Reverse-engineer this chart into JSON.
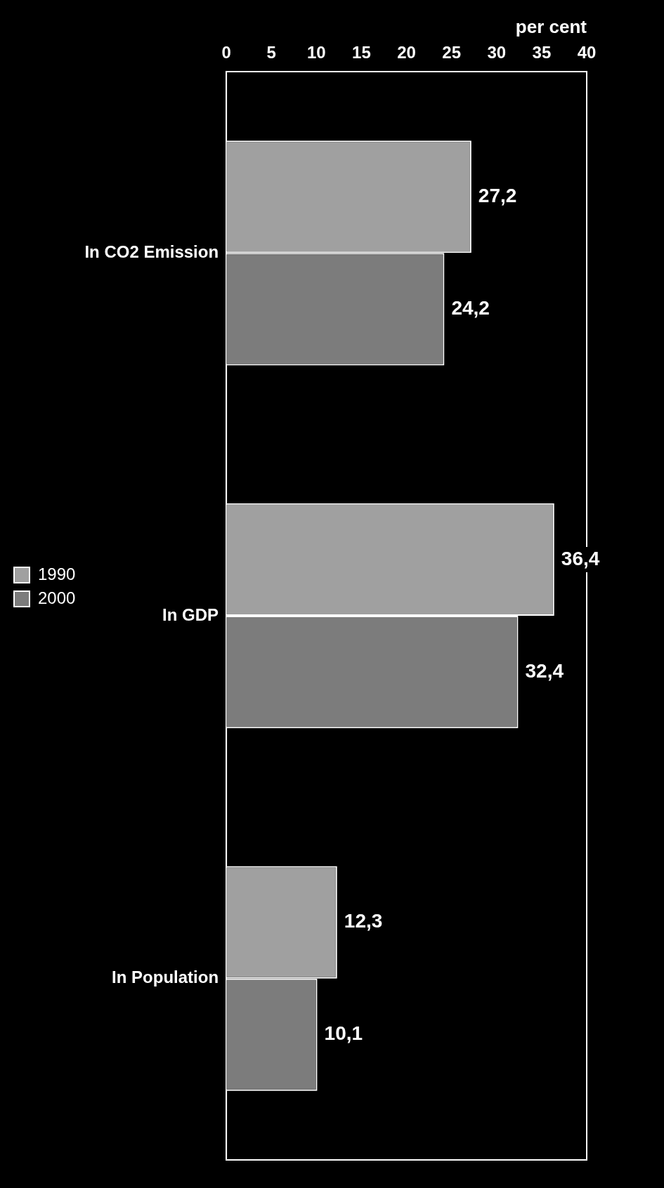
{
  "chart_data": {
    "type": "bar",
    "orientation": "horizontal",
    "xlabel": "per cent",
    "categories": [
      "In CO2 Emission",
      "In GDP",
      "In Population"
    ],
    "series": [
      {
        "name": "1990",
        "color": "#a0a0a0",
        "values": [
          27.2,
          36.4,
          12.3
        ],
        "value_labels": [
          "27,2",
          "36,4",
          "12,3"
        ]
      },
      {
        "name": "2000",
        "color": "#7c7c7c",
        "values": [
          24.2,
          32.4,
          10.1
        ],
        "value_labels": [
          "24,2",
          "32,4",
          "10,1"
        ]
      }
    ],
    "xlim": [
      0,
      40
    ],
    "xticks": [
      0,
      5,
      10,
      15,
      20,
      25,
      30,
      35,
      40
    ],
    "grid": false,
    "legend": "left"
  }
}
